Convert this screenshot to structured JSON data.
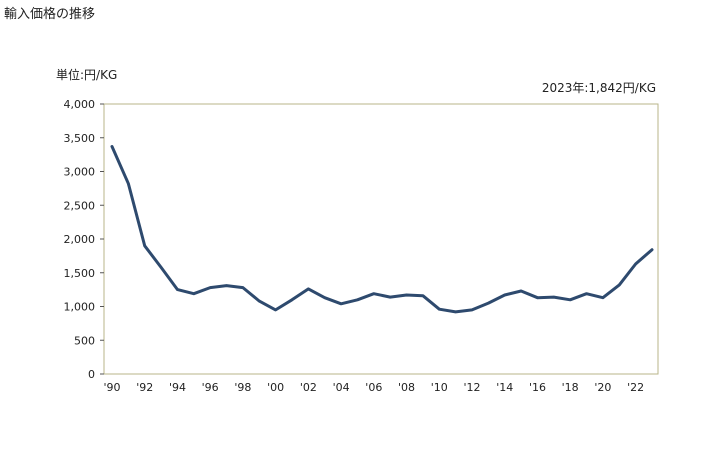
{
  "header": {
    "title": "輸入価格の推移",
    "unit_label": "単位:円/KG",
    "latest_label": "2023年:1,842円/KG"
  },
  "colors": {
    "line": "#2e4a6e",
    "plot_border": "#b8b68a"
  },
  "chart_data": {
    "type": "line",
    "title": "輸入価格の推移",
    "xlabel": "",
    "ylabel": "単位:円/KG",
    "x": [
      1990,
      1991,
      1992,
      1993,
      1994,
      1995,
      1996,
      1997,
      1998,
      1999,
      2000,
      2001,
      2002,
      2003,
      2004,
      2005,
      2006,
      2007,
      2008,
      2009,
      2010,
      2011,
      2012,
      2013,
      2014,
      2015,
      2016,
      2017,
      2018,
      2019,
      2020,
      2021,
      2022,
      2023
    ],
    "series": [
      {
        "name": "輸入価格",
        "values": [
          3370,
          2820,
          1900,
          1580,
          1250,
          1190,
          1280,
          1310,
          1280,
          1080,
          950,
          1100,
          1260,
          1130,
          1040,
          1100,
          1190,
          1140,
          1170,
          1160,
          960,
          920,
          950,
          1050,
          1170,
          1230,
          1130,
          1140,
          1100,
          1190,
          1130,
          1320,
          1630,
          1842
        ]
      }
    ],
    "ylim": [
      0,
      4000
    ],
    "xlim": [
      1990,
      2023
    ],
    "yticks": [
      0,
      500,
      1000,
      1500,
      2000,
      2500,
      3000,
      3500,
      4000
    ],
    "ytick_labels": [
      "0",
      "500",
      "1,000",
      "1,500",
      "2,000",
      "2,500",
      "3,000",
      "3,500",
      "4,000"
    ],
    "xticks": [
      1990,
      1992,
      1994,
      1996,
      1998,
      2000,
      2002,
      2004,
      2006,
      2008,
      2010,
      2012,
      2014,
      2016,
      2018,
      2020,
      2022
    ],
    "xtick_labels": [
      "'90",
      "'92",
      "'94",
      "'96",
      "'98",
      "'00",
      "'02",
      "'04",
      "'06",
      "'08",
      "'10",
      "'12",
      "'14",
      "'16",
      "'18",
      "'20",
      "'22"
    ],
    "grid": false,
    "legend": "none"
  }
}
